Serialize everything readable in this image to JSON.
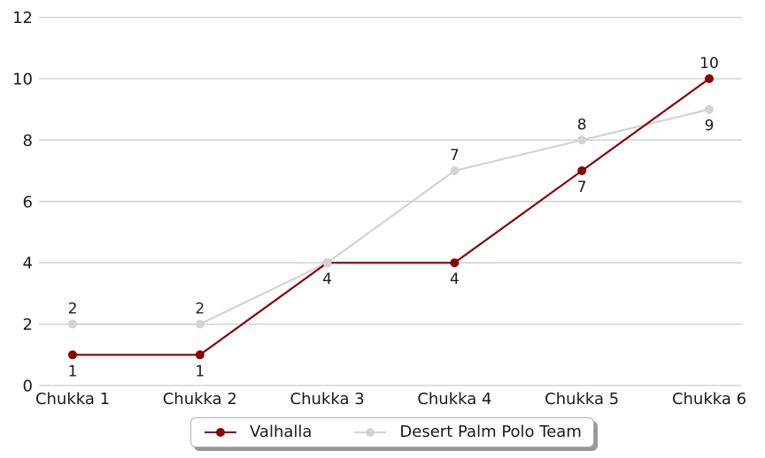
{
  "chart_data": {
    "type": "line",
    "title": "",
    "xlabel": "",
    "ylabel": "",
    "categories": [
      "Chukka 1",
      "Chukka 2",
      "Chukka 3",
      "Chukka 4",
      "Chukka 5",
      "Chukka 6"
    ],
    "series": [
      {
        "name": "Valhalla",
        "color": "#8b0000",
        "values": [
          1,
          1,
          4,
          4,
          7,
          10
        ],
        "label_positions": [
          "below",
          "below",
          "below",
          "below",
          "below",
          "above"
        ]
      },
      {
        "name": "Desert Palm Polo Team",
        "color": "#d3d3d3",
        "values": [
          2,
          2,
          4,
          7,
          8,
          9
        ],
        "label_positions": [
          "above",
          "above",
          "below",
          "above",
          "above",
          "below"
        ]
      }
    ],
    "y_ticks": [
      0,
      2,
      4,
      6,
      8,
      10,
      12
    ],
    "ylim": [
      0,
      12
    ],
    "grid": "horizontal",
    "gridline_color": "#cccccc",
    "text_color": "#1a1a1a",
    "background_color": "#ffffff",
    "legend_position": "bottom-center",
    "data_labels_shown": true
  }
}
